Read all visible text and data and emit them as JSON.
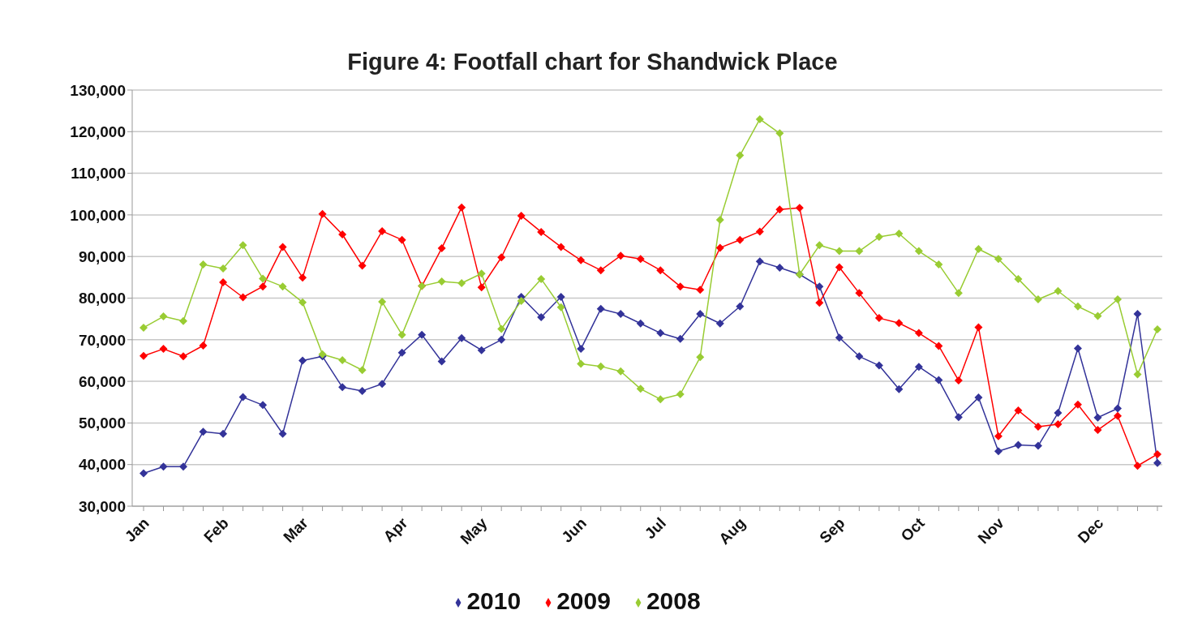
{
  "chart_data": {
    "type": "line",
    "title": "Figure 4: Footfall chart for Shandwick Place",
    "categories": [
      "Jan",
      null,
      null,
      null,
      "Feb",
      null,
      null,
      null,
      "Mar",
      null,
      null,
      null,
      null,
      "Apr",
      null,
      null,
      null,
      "May",
      null,
      null,
      null,
      null,
      "Jun",
      null,
      null,
      null,
      "Jul",
      null,
      null,
      null,
      "Aug",
      null,
      null,
      null,
      null,
      "Sep",
      null,
      null,
      null,
      "Oct",
      null,
      null,
      null,
      "Nov",
      null,
      null,
      null,
      null,
      "Dec",
      null,
      null,
      null
    ],
    "series": [
      {
        "name": "2010",
        "color": "#333399",
        "values": [
          37900,
          39500,
          39500,
          47900,
          47400,
          56200,
          54300,
          47400,
          65000,
          66000,
          58600,
          57700,
          59400,
          66900,
          71200,
          64800,
          70400,
          67500,
          70000,
          80300,
          75400,
          80300,
          67800,
          77400,
          76200,
          73900,
          71600,
          70200,
          76200,
          73900,
          78000,
          88800,
          87300,
          85700,
          82800,
          70500,
          66000,
          63800,
          58100,
          63500,
          60300,
          51400,
          56100,
          43200,
          44700,
          44500,
          52400,
          67900,
          51300,
          53500,
          76200,
          40400
        ]
      },
      {
        "name": "2009",
        "color": "#ff0000",
        "values": [
          66100,
          67800,
          66000,
          68600,
          83800,
          80200,
          82800,
          92300,
          84900,
          100200,
          95300,
          87800,
          96100,
          94000,
          82900,
          92000,
          101800,
          82600,
          89800,
          99800,
          95900,
          92300,
          89100,
          86700,
          90200,
          89400,
          86700,
          82800,
          82000,
          92100,
          94000,
          96000,
          101300,
          101700,
          78900,
          87400,
          81200,
          75200,
          74000,
          71600,
          68500,
          60200,
          73000,
          46800,
          53000,
          49100,
          49700,
          54400,
          48300,
          51700,
          39700,
          42500
        ]
      },
      {
        "name": "2008",
        "color": "#99cc33",
        "values": [
          72900,
          75600,
          74500,
          88100,
          87100,
          92700,
          84700,
          82800,
          79000,
          66500,
          65100,
          62700,
          79100,
          71200,
          82900,
          84000,
          83600,
          85900,
          72600,
          79300,
          84600,
          77800,
          64200,
          63600,
          62400,
          58200,
          55700,
          56900,
          65800,
          98800,
          114300,
          123000,
          119600,
          85700,
          92700,
          91300,
          91300,
          94700,
          95500,
          91300,
          88100,
          81200,
          91800,
          89400,
          84600,
          79700,
          81700,
          78000,
          75700,
          79700,
          61700,
          72500
        ]
      }
    ],
    "ylim": [
      30000,
      130000
    ],
    "yticks": [
      {
        "value": 30000,
        "label": "30,000"
      },
      {
        "value": 40000,
        "label": "40,000"
      },
      {
        "value": 50000,
        "label": "50,000"
      },
      {
        "value": 60000,
        "label": "60,000"
      },
      {
        "value": 70000,
        "label": "70,000"
      },
      {
        "value": 80000,
        "label": "80,000"
      },
      {
        "value": 90000,
        "label": "90,000"
      },
      {
        "value": 100000,
        "label": "100,000"
      },
      {
        "value": 110000,
        "label": "110,000"
      },
      {
        "value": 120000,
        "label": "120,000"
      },
      {
        "value": 130000,
        "label": "130,000"
      }
    ],
    "grid": "y",
    "legend": "bottom",
    "marker": "diamond",
    "line_style": "solid"
  }
}
